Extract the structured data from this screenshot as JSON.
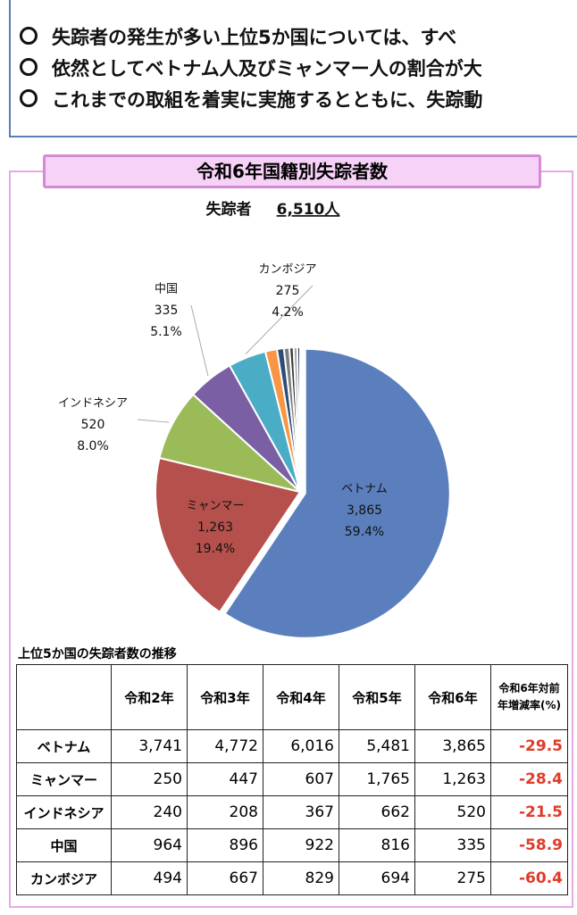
{
  "bullets": [
    "失踪者の発生が多い上位5か国については、すべ",
    "依然としてベトナム人及びミャンマー人の割合が大",
    "これまでの取組を着実に実施するとともに、失踪動"
  ],
  "chart_data": {
    "type": "pie",
    "title": "令和6年国籍別失踪者数",
    "subtitle_label": "失踪者",
    "subtitle_value": "6,510人",
    "categories": [
      "ベトナム",
      "ミャンマー",
      "インドネシア",
      "中国",
      "カンボジア",
      null,
      null,
      null,
      null,
      null,
      null
    ],
    "values": [
      3865,
      1263,
      520,
      335,
      275,
      85,
      50,
      40,
      30,
      27,
      20
    ],
    "value_labels": [
      "3,865",
      "1,263",
      "520",
      "335",
      "275",
      null,
      null,
      null,
      null,
      null,
      null
    ],
    "percent_labels": [
      "59.4%",
      "19.4%",
      "8.0%",
      "5.1%",
      "4.2%",
      null,
      null,
      null,
      null,
      null,
      null
    ],
    "colors": [
      "#5b7fbd",
      "#b5504c",
      "#9bbb59",
      "#7b5fa5",
      "#4bacc6",
      "#f79646",
      "#2c4d75",
      "#7f7f7f",
      "#3b3b3b",
      "#a5a5a5",
      "#1f3864"
    ]
  },
  "table": {
    "title": "上位5か国の失踪者数の推移",
    "columns": [
      "令和2年",
      "令和3年",
      "令和4年",
      "令和5年",
      "令和6年",
      "令和6年対前年増減率(%)"
    ],
    "rows": [
      [
        "ベトナム",
        "3,741",
        "4,772",
        "6,016",
        "5,481",
        "3,865",
        "-29.5"
      ],
      [
        "ミャンマー",
        "250",
        "447",
        "607",
        "1,765",
        "1,263",
        "-28.4"
      ],
      [
        "インドネシア",
        "240",
        "208",
        "367",
        "662",
        "520",
        "-21.5"
      ],
      [
        "中国",
        "964",
        "896",
        "922",
        "816",
        "335",
        "-58.9"
      ],
      [
        "カンボジア",
        "494",
        "667",
        "829",
        "694",
        "275",
        "-60.4"
      ]
    ]
  }
}
